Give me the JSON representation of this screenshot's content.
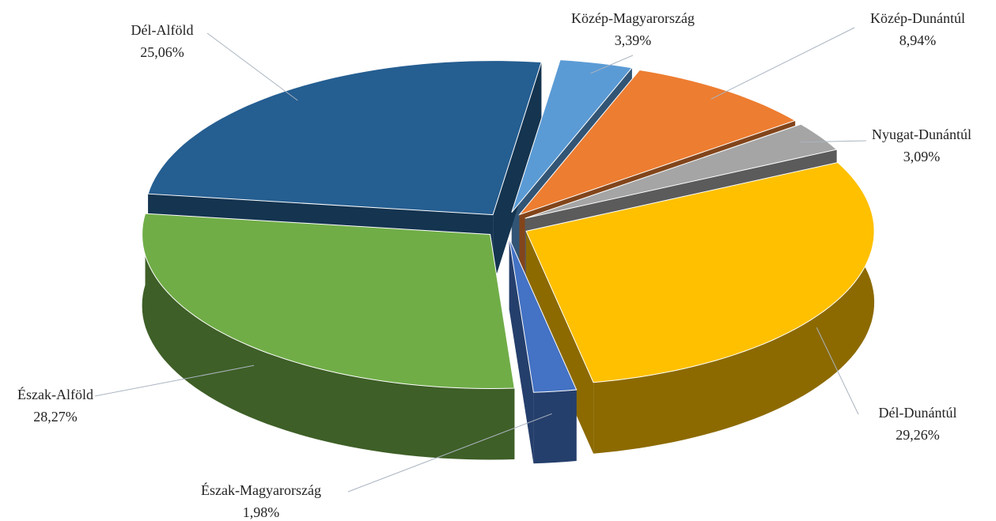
{
  "chart_data": {
    "type": "pie",
    "categories": [
      "Közép-Magyarország",
      "Közép-Dunántúl",
      "Nyugat-Dunántúl",
      "Dél-Dunántúl",
      "Észak-Magyarország",
      "Észak-Alföld",
      "Dél-Alföld"
    ],
    "values": [
      3.39,
      8.94,
      3.09,
      29.26,
      1.98,
      28.27,
      25.06
    ],
    "value_labels": [
      "3,39%",
      "8,94%",
      "3,09%",
      "29,26%",
      "1,98%",
      "28,27%",
      "25,06%"
    ],
    "colors": [
      "#5b9bd5",
      "#ed7d31",
      "#a5a5a5",
      "#ffc000",
      "#4472c4",
      "#70ad47",
      "#255e91"
    ]
  }
}
